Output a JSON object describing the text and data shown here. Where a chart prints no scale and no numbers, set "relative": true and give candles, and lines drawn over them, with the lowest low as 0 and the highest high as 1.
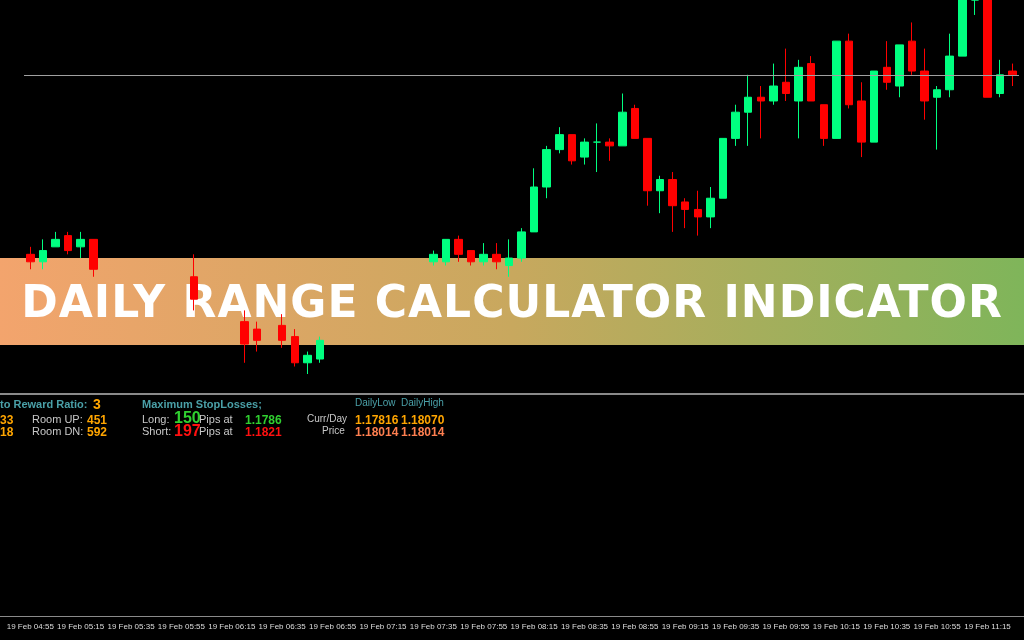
{
  "chart_data": {
    "type": "candlestick",
    "title": "DAILY RANGE CALCULATOR INDICATOR",
    "relative": true,
    "categories": [
      "19 Feb 04:55",
      null,
      null,
      null,
      "19 Feb 05:15",
      null,
      null,
      null,
      "19 Feb 05:35",
      null,
      null,
      null,
      "19 Feb 05:55",
      null,
      null,
      null,
      "19 Feb 06:15",
      null,
      null,
      null,
      "19 Feb 06:35",
      null,
      null,
      null,
      "19 Feb 06:55",
      null,
      null,
      null,
      "19 Feb 07:15",
      null,
      null,
      null,
      "19 Feb 07:35",
      null,
      null,
      null,
      "19 Feb 07:55",
      null,
      null,
      null,
      "19 Feb 08:15",
      null,
      null,
      null,
      "19 Feb 08:35",
      null,
      null,
      null,
      "19 Feb 08:55",
      null,
      null,
      null,
      "19 Feb 09:15",
      null,
      null,
      null,
      "19 Feb 09:35",
      null,
      null,
      null,
      "19 Feb 09:55",
      null,
      null,
      null,
      "19 Feb 10:15",
      null,
      null,
      null,
      "19 Feb 10:35",
      null,
      null,
      null,
      "19 Feb 10:55",
      null,
      null,
      null,
      "19 Feb 11:15",
      null,
      null
    ],
    "ohlc": [
      [
        0.32,
        0.34,
        0.28,
        0.3
      ],
      [
        0.3,
        0.36,
        0.28,
        0.33
      ],
      [
        0.34,
        0.38,
        0.34,
        0.36
      ],
      [
        0.37,
        0.38,
        0.32,
        0.33
      ],
      [
        0.34,
        0.38,
        0.31,
        0.36
      ],
      [
        0.36,
        0.36,
        0.26,
        0.28
      ],
      null,
      null,
      null,
      null,
      null,
      null,
      null,
      [
        0.26,
        0.32,
        0.17,
        0.2
      ],
      null,
      null,
      null,
      [
        0.14,
        0.17,
        0.03,
        0.08
      ],
      [
        0.12,
        0.14,
        0.06,
        0.09
      ],
      null,
      [
        0.13,
        0.16,
        0.07,
        0.09
      ],
      [
        0.1,
        0.12,
        0.02,
        0.03
      ],
      [
        0.03,
        0.06,
        0,
        0.05
      ],
      [
        0.04,
        0.1,
        0.03,
        0.09
      ],
      null,
      null,
      null,
      null,
      null,
      null,
      null,
      null,
      [
        0.3,
        0.33,
        0.29,
        0.32
      ],
      [
        0.3,
        0.36,
        0.29,
        0.36
      ],
      [
        0.36,
        0.37,
        0.3,
        0.32
      ],
      [
        0.33,
        0.33,
        0.29,
        0.3
      ],
      [
        0.3,
        0.35,
        0.29,
        0.32
      ],
      [
        0.32,
        0.35,
        0.28,
        0.3
      ],
      [
        0.29,
        0.36,
        0.26,
        0.31
      ],
      [
        0.31,
        0.39,
        0.3,
        0.38
      ],
      [
        0.38,
        0.55,
        0.38,
        0.5
      ],
      [
        0.5,
        0.61,
        0.47,
        0.6
      ],
      [
        0.6,
        0.66,
        0.59,
        0.64
      ],
      [
        0.64,
        0.64,
        0.56,
        0.57
      ],
      [
        0.58,
        0.63,
        0.56,
        0.62
      ],
      [
        0.62,
        0.67,
        0.54,
        0.62
      ],
      [
        0.62,
        0.63,
        0.57,
        0.61
      ],
      [
        0.61,
        0.75,
        0.61,
        0.7
      ],
      [
        0.71,
        0.72,
        0.63,
        0.63
      ],
      [
        0.63,
        0.63,
        0.45,
        0.49
      ],
      [
        0.49,
        0.53,
        0.43,
        0.52
      ],
      [
        0.52,
        0.54,
        0.38,
        0.45
      ],
      [
        0.46,
        0.47,
        0.39,
        0.44
      ],
      [
        0.44,
        0.49,
        0.37,
        0.42
      ],
      [
        0.42,
        0.5,
        0.39,
        0.47
      ],
      [
        0.47,
        0.63,
        0.47,
        0.63
      ],
      [
        0.63,
        0.72,
        0.61,
        0.7
      ],
      [
        0.7,
        0.8,
        0.61,
        0.74
      ],
      [
        0.74,
        0.77,
        0.63,
        0.73
      ],
      [
        0.73,
        0.83,
        0.72,
        0.77
      ],
      [
        0.78,
        0.87,
        0.73,
        0.75
      ],
      [
        0.73,
        0.84,
        0.63,
        0.82
      ],
      [
        0.83,
        0.85,
        0.73,
        0.73
      ],
      [
        0.72,
        0.72,
        0.61,
        0.63
      ],
      [
        0.63,
        0.89,
        0.63,
        0.89
      ],
      [
        0.89,
        0.91,
        0.71,
        0.72
      ],
      [
        0.73,
        0.78,
        0.58,
        0.62
      ],
      [
        0.62,
        0.81,
        0.62,
        0.81
      ],
      [
        0.82,
        0.89,
        0.76,
        0.78
      ],
      [
        0.77,
        0.88,
        0.74,
        0.88
      ],
      [
        0.89,
        0.94,
        0.8,
        0.81
      ],
      [
        0.81,
        0.87,
        0.68,
        0.73
      ],
      [
        0.74,
        0.77,
        0.6,
        0.76
      ],
      [
        0.76,
        0.91,
        0.74,
        0.85
      ],
      [
        0.85,
        1,
        0.85,
        1
      ],
      [
        1,
        1,
        0.96,
        1
      ],
      [
        1,
        1,
        0.74,
        0.74
      ],
      [
        0.75,
        0.84,
        0.74,
        0.8
      ],
      [
        0.81,
        0.83,
        0.77,
        0.8
      ]
    ],
    "ref_lines": [
      {
        "axis": "y",
        "value": 0.8,
        "color": "#a0a0a0"
      }
    ],
    "annotations": [
      "to Reward Ratio:",
      "3",
      "33",
      "18",
      "Room UP:",
      "451",
      "Room DN:",
      "592",
      "Maximum StopLosses;",
      "Long:",
      "150",
      "Pips at",
      "1.1786",
      "Short:",
      "197",
      "Pips at",
      "1.1821",
      "DailyLow",
      "DailyHigh",
      "Curr/Day",
      "Price",
      "1.17816",
      "1.18070",
      "1.18014",
      "1.18014"
    ]
  }
}
